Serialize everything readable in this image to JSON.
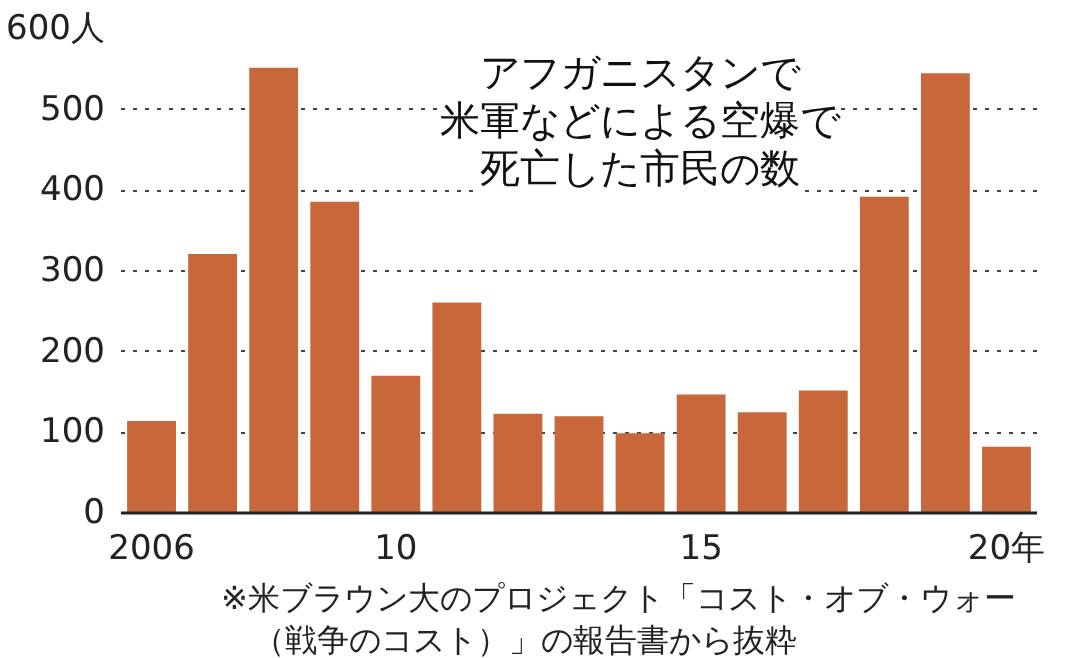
{
  "chart_data": {
    "type": "bar",
    "title": "アフガニスタンで米軍などによる空爆で死亡した市民の数",
    "categories": [
      "2006",
      null,
      null,
      null,
      "10",
      null,
      null,
      null,
      null,
      "15",
      null,
      null,
      null,
      null,
      "20年"
    ],
    "values": [
      114,
      321,
      552,
      386,
      170,
      261,
      123,
      120,
      99,
      147,
      125,
      152,
      392,
      545,
      82
    ],
    "color": "#c8683a",
    "ylim": [
      0,
      600
    ],
    "yticks": [
      0,
      100,
      200,
      300,
      400,
      500,
      {
        "value": 600,
        "label": "600人"
      }
    ],
    "grid": "y",
    "line_style": "dotted",
    "annotations": [
      "※米ブラウン大のプロジェクト「コスト・オブ・ウォー（戦争のコスト）」の報告書から抜粋"
    ]
  }
}
